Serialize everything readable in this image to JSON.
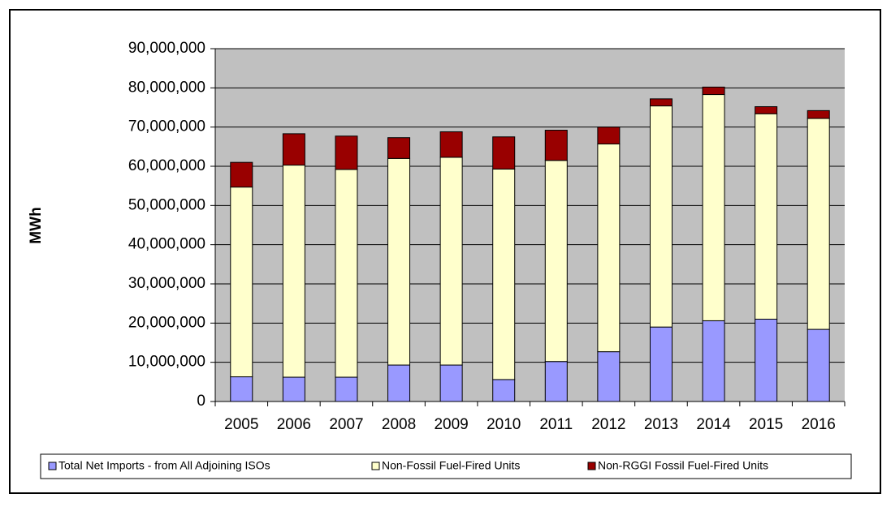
{
  "chart_data": {
    "type": "stacked_bar",
    "y_label": "MWh",
    "categories": [
      "2005",
      "2006",
      "2007",
      "2008",
      "2009",
      "2010",
      "2011",
      "2012",
      "2013",
      "2014",
      "2015",
      "2016"
    ],
    "series": [
      {
        "name": "Total Net Imports - from All Adjoining ISOs",
        "color": "#9999ff",
        "values": [
          6300000,
          6200000,
          6200000,
          9300000,
          9300000,
          5600000,
          10200000,
          12700000,
          19000000,
          20600000,
          21000000,
          18400000
        ]
      },
      {
        "name": "Non-Fossil Fuel-Fired Units",
        "color": "#ffffcc",
        "values": [
          48400000,
          54100000,
          53000000,
          52700000,
          53000000,
          53700000,
          51300000,
          53000000,
          56400000,
          57700000,
          52400000,
          53800000
        ]
      },
      {
        "name": "Non-RGGI Fossil Fuel-Fired Units",
        "color": "#990000",
        "values": [
          6300000,
          8000000,
          8500000,
          5300000,
          6500000,
          8200000,
          7700000,
          4300000,
          1800000,
          1900000,
          1800000,
          2000000
        ]
      }
    ],
    "ylim": [
      0,
      90000000
    ],
    "yticks": [
      0,
      {
        "value": 10000000,
        "label": "10,000,000"
      },
      {
        "value": 20000000,
        "label": "20,000,000"
      },
      {
        "value": 30000000,
        "label": "30,000,000"
      },
      {
        "value": 40000000,
        "label": "40,000,000"
      },
      {
        "value": 50000000,
        "label": "50,000,000"
      },
      {
        "value": 60000000,
        "label": "60,000,000"
      },
      {
        "value": 70000000,
        "label": "70,000,000"
      },
      {
        "value": 80000000,
        "label": "80,000,000"
      },
      {
        "value": 90000000,
        "label": "90,000,000"
      }
    ],
    "grid": true,
    "plot_background": "#c0c0c0",
    "legend": "bottom"
  }
}
